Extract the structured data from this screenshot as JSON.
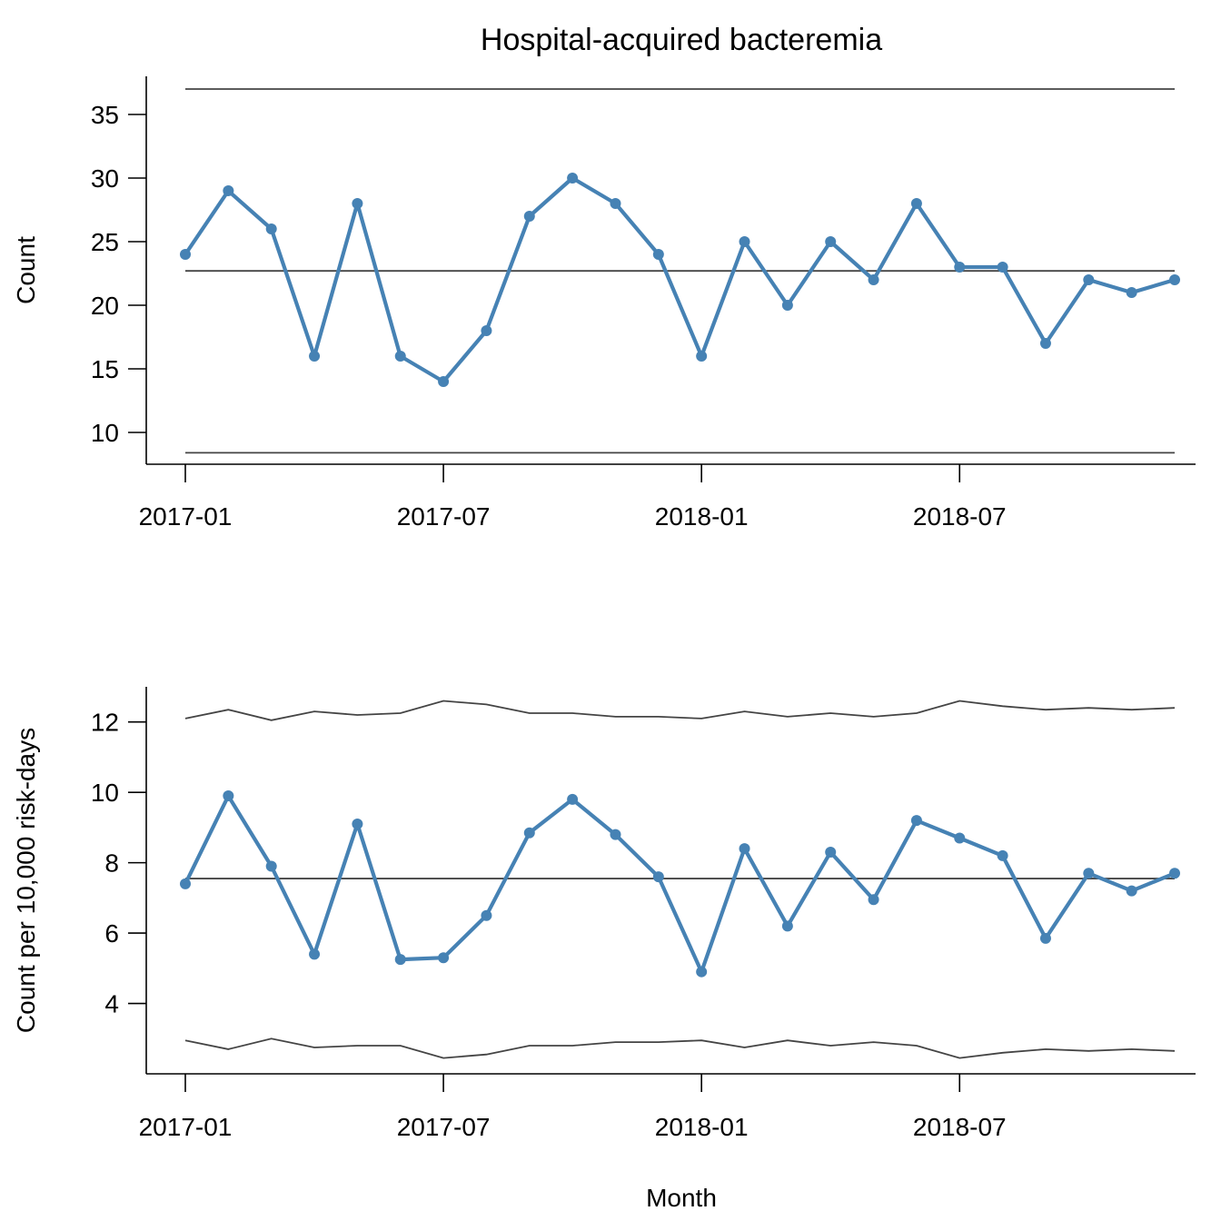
{
  "chart_data": [
    {
      "type": "line",
      "title": "Hospital-acquired bacteremia",
      "xlabel": "",
      "ylabel": "Count",
      "x_ticks": [
        "2017-01",
        "2017-07",
        "2018-01",
        "2018-07"
      ],
      "x": [
        "2017-01",
        "2017-02",
        "2017-03",
        "2017-04",
        "2017-05",
        "2017-06",
        "2017-07",
        "2017-08",
        "2017-09",
        "2017-10",
        "2017-11",
        "2017-12",
        "2018-01",
        "2018-02",
        "2018-03",
        "2018-04",
        "2018-05",
        "2018-06",
        "2018-07",
        "2018-08",
        "2018-09",
        "2018-10",
        "2018-11",
        "2018-12"
      ],
      "ylim": [
        7.5,
        38
      ],
      "y_ticks": [
        10,
        15,
        20,
        25,
        30,
        35
      ],
      "series": [
        {
          "values": [
            24,
            29,
            26,
            16,
            28,
            16,
            14,
            18,
            27,
            30,
            28,
            24,
            16,
            25,
            20,
            25,
            22,
            28,
            23,
            23,
            17,
            22,
            21,
            22
          ]
        }
      ],
      "center_line": 22.7,
      "upper_limit": 37.0,
      "lower_limit": 8.4,
      "color": "#4682B4"
    },
    {
      "type": "line",
      "title": "",
      "xlabel": "Month",
      "ylabel": "Count per 10,000 risk-days",
      "x_ticks": [
        "2017-01",
        "2017-07",
        "2018-01",
        "2018-07"
      ],
      "x": [
        "2017-01",
        "2017-02",
        "2017-03",
        "2017-04",
        "2017-05",
        "2017-06",
        "2017-07",
        "2017-08",
        "2017-09",
        "2017-10",
        "2017-11",
        "2017-12",
        "2018-01",
        "2018-02",
        "2018-03",
        "2018-04",
        "2018-05",
        "2018-06",
        "2018-07",
        "2018-08",
        "2018-09",
        "2018-10",
        "2018-11",
        "2018-12"
      ],
      "ylim": [
        2.0,
        13.0
      ],
      "y_ticks": [
        4,
        6,
        8,
        10,
        12
      ],
      "series": [
        {
          "values": [
            7.4,
            9.9,
            7.9,
            5.4,
            9.1,
            5.25,
            5.3,
            6.5,
            8.85,
            9.8,
            8.8,
            7.6,
            4.9,
            8.4,
            6.2,
            8.3,
            6.95,
            9.2,
            8.7,
            8.2,
            5.85,
            7.7,
            7.2,
            7.7
          ]
        }
      ],
      "center_line": 7.55,
      "upper_limit": [
        12.1,
        12.35,
        12.05,
        12.3,
        12.2,
        12.25,
        12.6,
        12.5,
        12.25,
        12.25,
        12.15,
        12.15,
        12.1,
        12.3,
        12.15,
        12.25,
        12.15,
        12.25,
        12.6,
        12.45,
        12.35,
        12.4,
        12.35,
        12.4
      ],
      "lower_limit": [
        2.95,
        2.7,
        3.0,
        2.75,
        2.8,
        2.8,
        2.45,
        2.55,
        2.8,
        2.8,
        2.9,
        2.9,
        2.95,
        2.75,
        2.95,
        2.8,
        2.9,
        2.8,
        2.45,
        2.6,
        2.7,
        2.65,
        2.7,
        2.65
      ],
      "color": "#4682B4"
    }
  ]
}
